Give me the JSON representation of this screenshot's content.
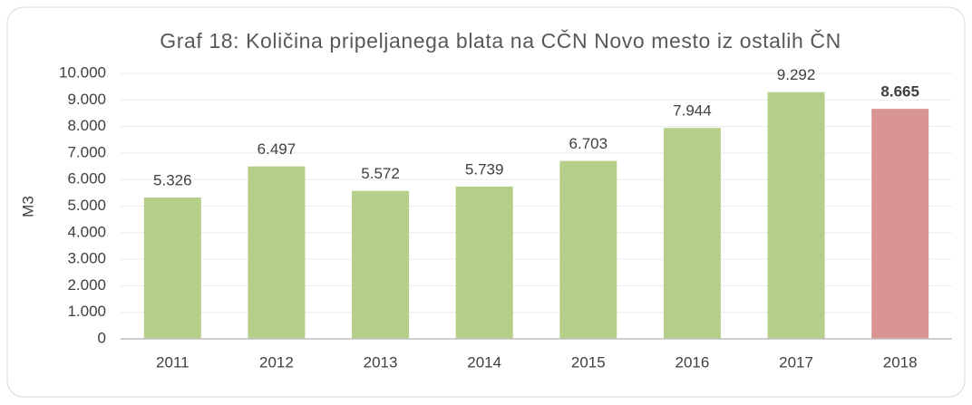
{
  "chart_data": {
    "type": "bar",
    "title": "Graf 18: Količina pripeljanega blata na CČN Novo mesto iz ostalih ČN",
    "y_label": "M3",
    "categories": [
      "2011",
      "2012",
      "2013",
      "2014",
      "2015",
      "2016",
      "2017",
      "2018"
    ],
    "values": [
      5326,
      6497,
      5572,
      5739,
      6703,
      7944,
      9292,
      8665
    ],
    "value_labels": [
      "5.326",
      "6.497",
      "5.572",
      "5.739",
      "6.703",
      "7.944",
      "9.292",
      "8.665"
    ],
    "colors": [
      "#b5cf8a",
      "#b5cf8a",
      "#b5cf8a",
      "#b5cf8a",
      "#b5cf8a",
      "#b5cf8a",
      "#b5cf8a",
      "#d99594"
    ],
    "ylim": [
      0,
      10000
    ],
    "yticks": [
      0,
      {
        "value": 1000,
        "label": "1.000"
      },
      {
        "value": 2000,
        "label": "2.000"
      },
      {
        "value": 3000,
        "label": "3.000"
      },
      {
        "value": 4000,
        "label": "4.000"
      },
      {
        "value": 5000,
        "label": "5.000"
      },
      {
        "value": 6000,
        "label": "6.000"
      },
      {
        "value": 7000,
        "label": "7.000"
      },
      {
        "value": 8000,
        "label": "8.000"
      },
      {
        "value": 9000,
        "label": "9.000"
      },
      {
        "value": 10000,
        "label": "10.000"
      }
    ],
    "grid": true
  }
}
